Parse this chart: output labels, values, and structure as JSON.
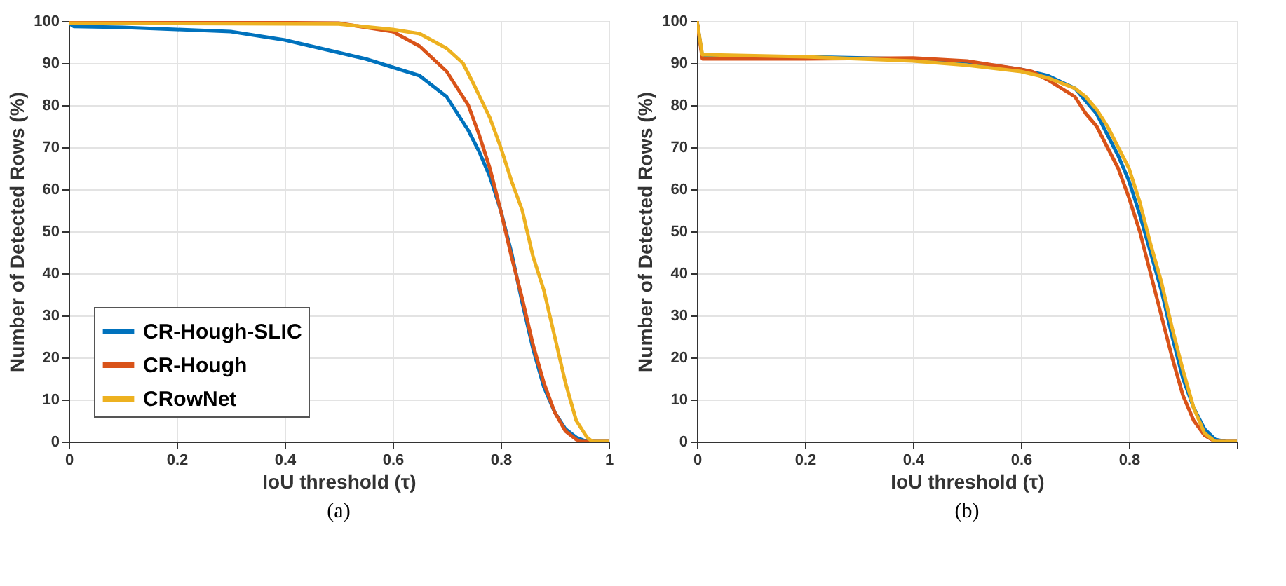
{
  "chart_data": [
    {
      "type": "line",
      "xlabel": "IoU threshold (τ)",
      "ylabel": "Number of  Detected Rows (%)",
      "annotations": [
        "(a)"
      ],
      "xlim": [
        0,
        1
      ],
      "ylim": [
        0,
        100
      ],
      "xticks": [
        0,
        0.2,
        0.4,
        0.6,
        0.8,
        1
      ],
      "yticks": [
        0,
        10,
        20,
        30,
        40,
        50,
        60,
        70,
        80,
        90,
        100
      ],
      "grid": true,
      "legend": "bottom left",
      "marker": "none",
      "line_style": "solid",
      "series": [
        {
          "name": "CR-Hough-SLIC",
          "color": "#0072bd",
          "x": [
            0,
            0.01,
            0.1,
            0.2,
            0.3,
            0.4,
            0.5,
            0.55,
            0.6,
            0.65,
            0.7,
            0.72,
            0.74,
            0.76,
            0.78,
            0.8,
            0.82,
            0.84,
            0.86,
            0.88,
            0.9,
            0.92,
            0.94,
            0.96,
            1
          ],
          "values": [
            99.5,
            98.7,
            98.5,
            98,
            97.5,
            95.5,
            92.5,
            91,
            89,
            87,
            82,
            78,
            74,
            69,
            63,
            55,
            45,
            33,
            22,
            13,
            7,
            3,
            1,
            0,
            0
          ]
        },
        {
          "name": "CR-Hough",
          "color": "#d95319",
          "x": [
            0,
            0.5,
            0.6,
            0.65,
            0.7,
            0.72,
            0.74,
            0.76,
            0.78,
            0.8,
            0.82,
            0.84,
            0.86,
            0.88,
            0.9,
            0.92,
            0.94,
            0.95,
            1
          ],
          "values": [
            100,
            99.5,
            97.5,
            94,
            88,
            84,
            80,
            73,
            65,
            55,
            44,
            34,
            23,
            14,
            7,
            2.5,
            0.5,
            0,
            0
          ]
        },
        {
          "name": "CRowNet",
          "color": "#edb120",
          "x": [
            0,
            0.5,
            0.6,
            0.65,
            0.7,
            0.73,
            0.75,
            0.78,
            0.8,
            0.82,
            0.84,
            0.86,
            0.88,
            0.9,
            0.92,
            0.94,
            0.96,
            0.97,
            1
          ],
          "values": [
            99.5,
            99.3,
            98,
            97,
            93.5,
            90,
            85,
            77,
            70,
            62,
            55,
            44,
            36,
            25,
            14,
            5,
            1,
            0,
            0
          ]
        }
      ]
    },
    {
      "type": "line",
      "xlabel": "IoU threshold (τ)",
      "ylabel": "Number of  Detected Rows (%)",
      "annotations": [
        "(b)"
      ],
      "xlim": [
        0,
        1
      ],
      "ylim": [
        0,
        100
      ],
      "xticks": [
        0,
        0.2,
        0.4,
        0.6,
        0.8,
        {
          "value": 1,
          "label": null
        }
      ],
      "yticks": [
        0,
        10,
        20,
        30,
        40,
        50,
        60,
        70,
        80,
        90,
        100
      ],
      "grid": true,
      "legend": "bottom left",
      "marker": "none",
      "line_style": "solid",
      "series": [
        {
          "name": "CR-Hough-SLIC",
          "color": "#0072bd",
          "x": [
            0,
            0.01,
            0.2,
            0.4,
            0.5,
            0.6,
            0.65,
            0.7,
            0.72,
            0.74,
            0.76,
            0.78,
            0.8,
            0.82,
            0.84,
            0.86,
            0.88,
            0.9,
            0.92,
            0.94,
            0.96,
            0.98,
            1
          ],
          "values": [
            100,
            91.5,
            91.5,
            91,
            90.3,
            88.5,
            87,
            84,
            81,
            78,
            73,
            68,
            62,
            54,
            45,
            36,
            25,
            15,
            8,
            3,
            0.5,
            0,
            0
          ]
        },
        {
          "name": "CR-Hough",
          "color": "#d95319",
          "x": [
            0,
            0.01,
            0.2,
            0.4,
            0.5,
            0.6,
            0.62,
            0.65,
            0.7,
            0.72,
            0.74,
            0.76,
            0.78,
            0.8,
            0.82,
            0.84,
            0.86,
            0.88,
            0.9,
            0.92,
            0.94,
            0.96,
            1
          ],
          "values": [
            100,
            91,
            91,
            91.2,
            90.5,
            88.5,
            88,
            86,
            82,
            78,
            75,
            70,
            65,
            58,
            50,
            40,
            30,
            20,
            11,
            5,
            1.5,
            0,
            0
          ]
        },
        {
          "name": "CRowNet",
          "color": "#edb120",
          "x": [
            0,
            0.01,
            0.2,
            0.4,
            0.5,
            0.6,
            0.65,
            0.7,
            0.72,
            0.74,
            0.76,
            0.78,
            0.8,
            0.82,
            0.84,
            0.86,
            0.88,
            0.9,
            0.92,
            0.94,
            0.96,
            1
          ],
          "values": [
            100,
            92,
            91.5,
            90.5,
            89.5,
            88,
            86.5,
            84,
            82,
            79,
            75,
            70,
            65,
            57,
            47,
            38,
            27,
            17,
            8,
            2,
            0,
            0
          ]
        }
      ]
    }
  ]
}
